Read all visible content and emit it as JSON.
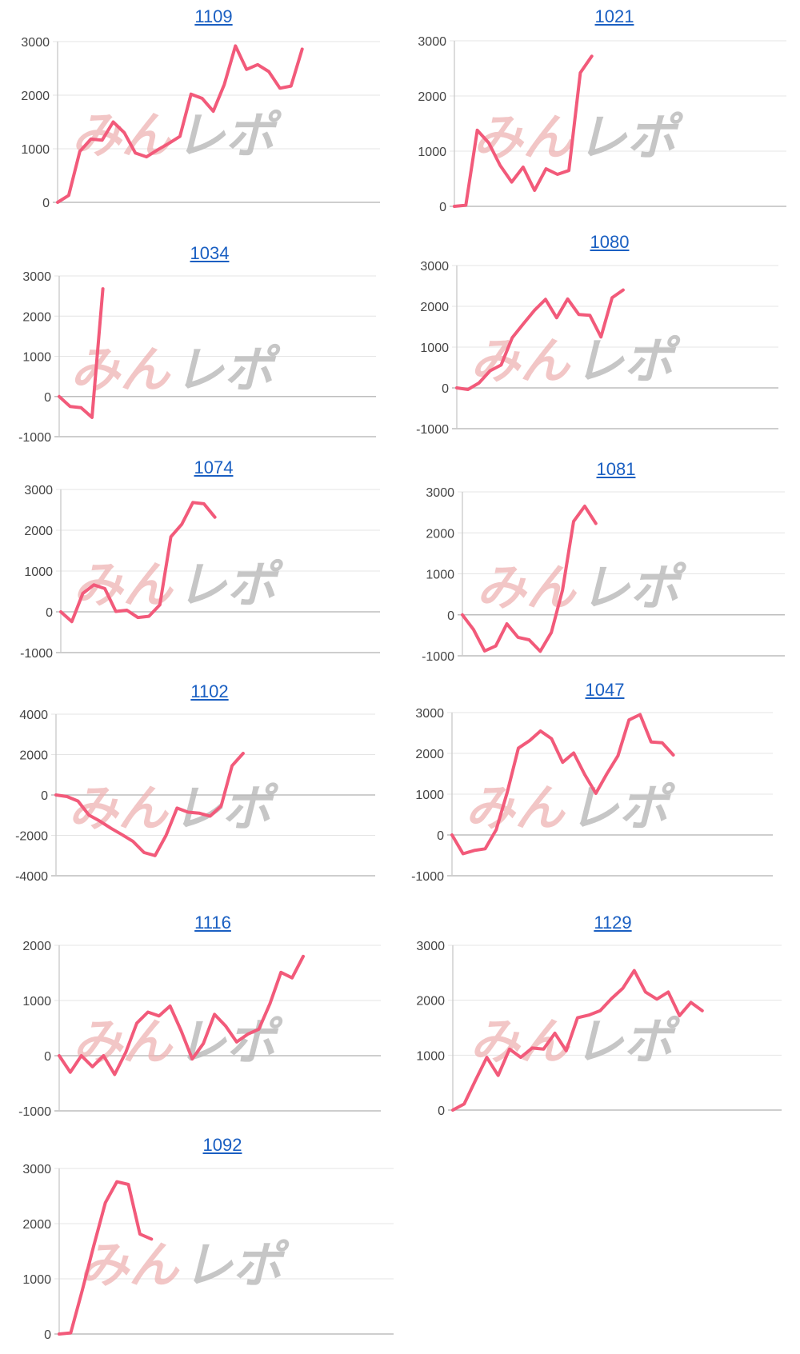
{
  "colors": {
    "line": "#f25a7a",
    "title": "#1a5fc2",
    "watermark_red": "#eeb3b3",
    "watermark_gray": "#b9b9b9"
  },
  "watermark": {
    "text_left": "みん",
    "text_right": "レポ"
  },
  "chart_data": [
    {
      "type": "line",
      "title": "1109",
      "ylim": [
        0,
        3000
      ],
      "yticks": [
        0,
        1000,
        2000,
        3000
      ],
      "values": [
        0,
        130,
        950,
        1180,
        1160,
        1500,
        1300,
        920,
        850,
        980,
        1100,
        1230,
        2020,
        1940,
        1700,
        2200,
        2920,
        2480,
        2570,
        2440,
        2130,
        2170,
        2860
      ]
    },
    {
      "type": "line",
      "title": "1021",
      "ylim": [
        0,
        3000
      ],
      "yticks": [
        0,
        1000,
        2000,
        3000
      ],
      "values": [
        0,
        20,
        1380,
        1150,
        740,
        440,
        710,
        290,
        680,
        580,
        650,
        2420,
        2720
      ]
    },
    {
      "type": "line",
      "title": "1034",
      "ylim": [
        -1000,
        3000
      ],
      "yticks": [
        -1000,
        0,
        1000,
        2000,
        3000
      ],
      "values": [
        0,
        -250,
        -280,
        -520,
        2680
      ]
    },
    {
      "type": "line",
      "title": "1080",
      "ylim": [
        -1000,
        3000
      ],
      "yticks": [
        -1000,
        0,
        1000,
        2000,
        3000
      ],
      "values": [
        0,
        -40,
        120,
        420,
        560,
        1230,
        1570,
        1900,
        2170,
        1720,
        2180,
        1800,
        1780,
        1250,
        2210,
        2400
      ]
    },
    {
      "type": "line",
      "title": "1074",
      "ylim": [
        -1000,
        3000
      ],
      "yticks": [
        -1000,
        0,
        1000,
        2000,
        3000
      ],
      "values": [
        0,
        -240,
        450,
        660,
        570,
        10,
        40,
        -140,
        -110,
        170,
        1840,
        2150,
        2680,
        2650,
        2320
      ]
    },
    {
      "type": "line",
      "title": "1081",
      "ylim": [
        -1000,
        3000
      ],
      "yticks": [
        -1000,
        0,
        1000,
        2000,
        3000
      ],
      "values": [
        0,
        -360,
        -880,
        -760,
        -220,
        -550,
        -610,
        -890,
        -430,
        600,
        2280,
        2650,
        2230
      ]
    },
    {
      "type": "line",
      "title": "1102",
      "ylim": [
        -4000,
        4000
      ],
      "yticks": [
        -4000,
        -2000,
        0,
        2000,
        4000
      ],
      "values": [
        0,
        -80,
        -300,
        -1000,
        -1300,
        -1650,
        -1970,
        -2300,
        -2850,
        -3000,
        -2000,
        -650,
        -850,
        -900,
        -1050,
        -550,
        1450,
        2060
      ]
    },
    {
      "type": "line",
      "title": "1047",
      "ylim": [
        -1000,
        3000
      ],
      "yticks": [
        -1000,
        0,
        1000,
        2000,
        3000
      ],
      "values": [
        0,
        -460,
        -380,
        -340,
        130,
        1050,
        2130,
        2310,
        2550,
        2360,
        1780,
        2010,
        1480,
        1020,
        1500,
        1940,
        2820,
        2950,
        2280,
        2260,
        1960
      ]
    },
    {
      "type": "line",
      "title": "1116",
      "ylim": [
        -1000,
        2000
      ],
      "yticks": [
        -1000,
        0,
        1000,
        2000
      ],
      "values": [
        0,
        -300,
        0,
        -200,
        0,
        -340,
        60,
        590,
        790,
        720,
        900,
        450,
        -60,
        220,
        750,
        540,
        250,
        390,
        480,
        940,
        1510,
        1410,
        1800
      ]
    },
    {
      "type": "line",
      "title": "1129",
      "ylim": [
        0,
        3000
      ],
      "yticks": [
        0,
        1000,
        2000,
        3000
      ],
      "values": [
        0,
        110,
        540,
        960,
        630,
        1110,
        960,
        1130,
        1110,
        1400,
        1080,
        1680,
        1730,
        1810,
        2030,
        2220,
        2540,
        2150,
        2020,
        2150,
        1720,
        1960,
        1810
      ]
    },
    {
      "type": "line",
      "title": "1092",
      "ylim": [
        0,
        3000
      ],
      "yticks": [
        0,
        1000,
        2000,
        3000
      ],
      "values": [
        0,
        20,
        790,
        1600,
        2380,
        2760,
        2710,
        1810,
        1720
      ]
    }
  ]
}
